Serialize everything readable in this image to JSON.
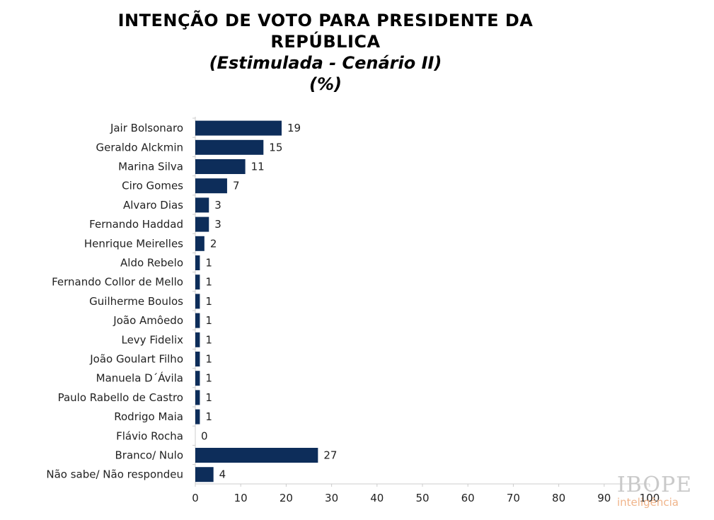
{
  "title": {
    "line1": "INTENÇÃO DE VOTO PARA PRESIDENTE DA",
    "line2": "REPÚBLICA",
    "line3": "(Estimulada - Cenário II)",
    "line4": "(%)"
  },
  "logo": {
    "brand": "IBOPE",
    "sub": "inteligência"
  },
  "colors": {
    "bar": "#0d2d5a",
    "axis": "#cccccc"
  },
  "chart_data": {
    "type": "bar",
    "orientation": "horizontal",
    "title": "INTENÇÃO DE VOTO PARA PRESIDENTE DA REPÚBLICA (Estimulada - Cenário II) (%)",
    "categories": [
      "Jair Bolsonaro",
      "Geraldo Alckmin",
      "Marina Silva",
      "Ciro Gomes",
      "Alvaro Dias",
      "Fernando Haddad",
      "Henrique Meirelles",
      "Aldo Rebelo",
      "Fernando Collor de Mello",
      "Guilherme Boulos",
      "João Amôedo",
      "Levy Fidelix",
      "João Goulart Filho",
      "Manuela D´Ávila",
      "Paulo Rabello de Castro",
      "Rodrigo Maia",
      "Flávio Rocha",
      "Branco/ Nulo",
      "Não sabe/ Não respondeu"
    ],
    "values": [
      19,
      15,
      11,
      7,
      3,
      3,
      2,
      1,
      1,
      1,
      1,
      1,
      1,
      1,
      1,
      1,
      0,
      27,
      4
    ],
    "xlim": [
      0,
      100
    ],
    "xticks": [
      0,
      10,
      20,
      30,
      40,
      50,
      60,
      70,
      80,
      90,
      100
    ],
    "grid": false,
    "legend": "none"
  }
}
